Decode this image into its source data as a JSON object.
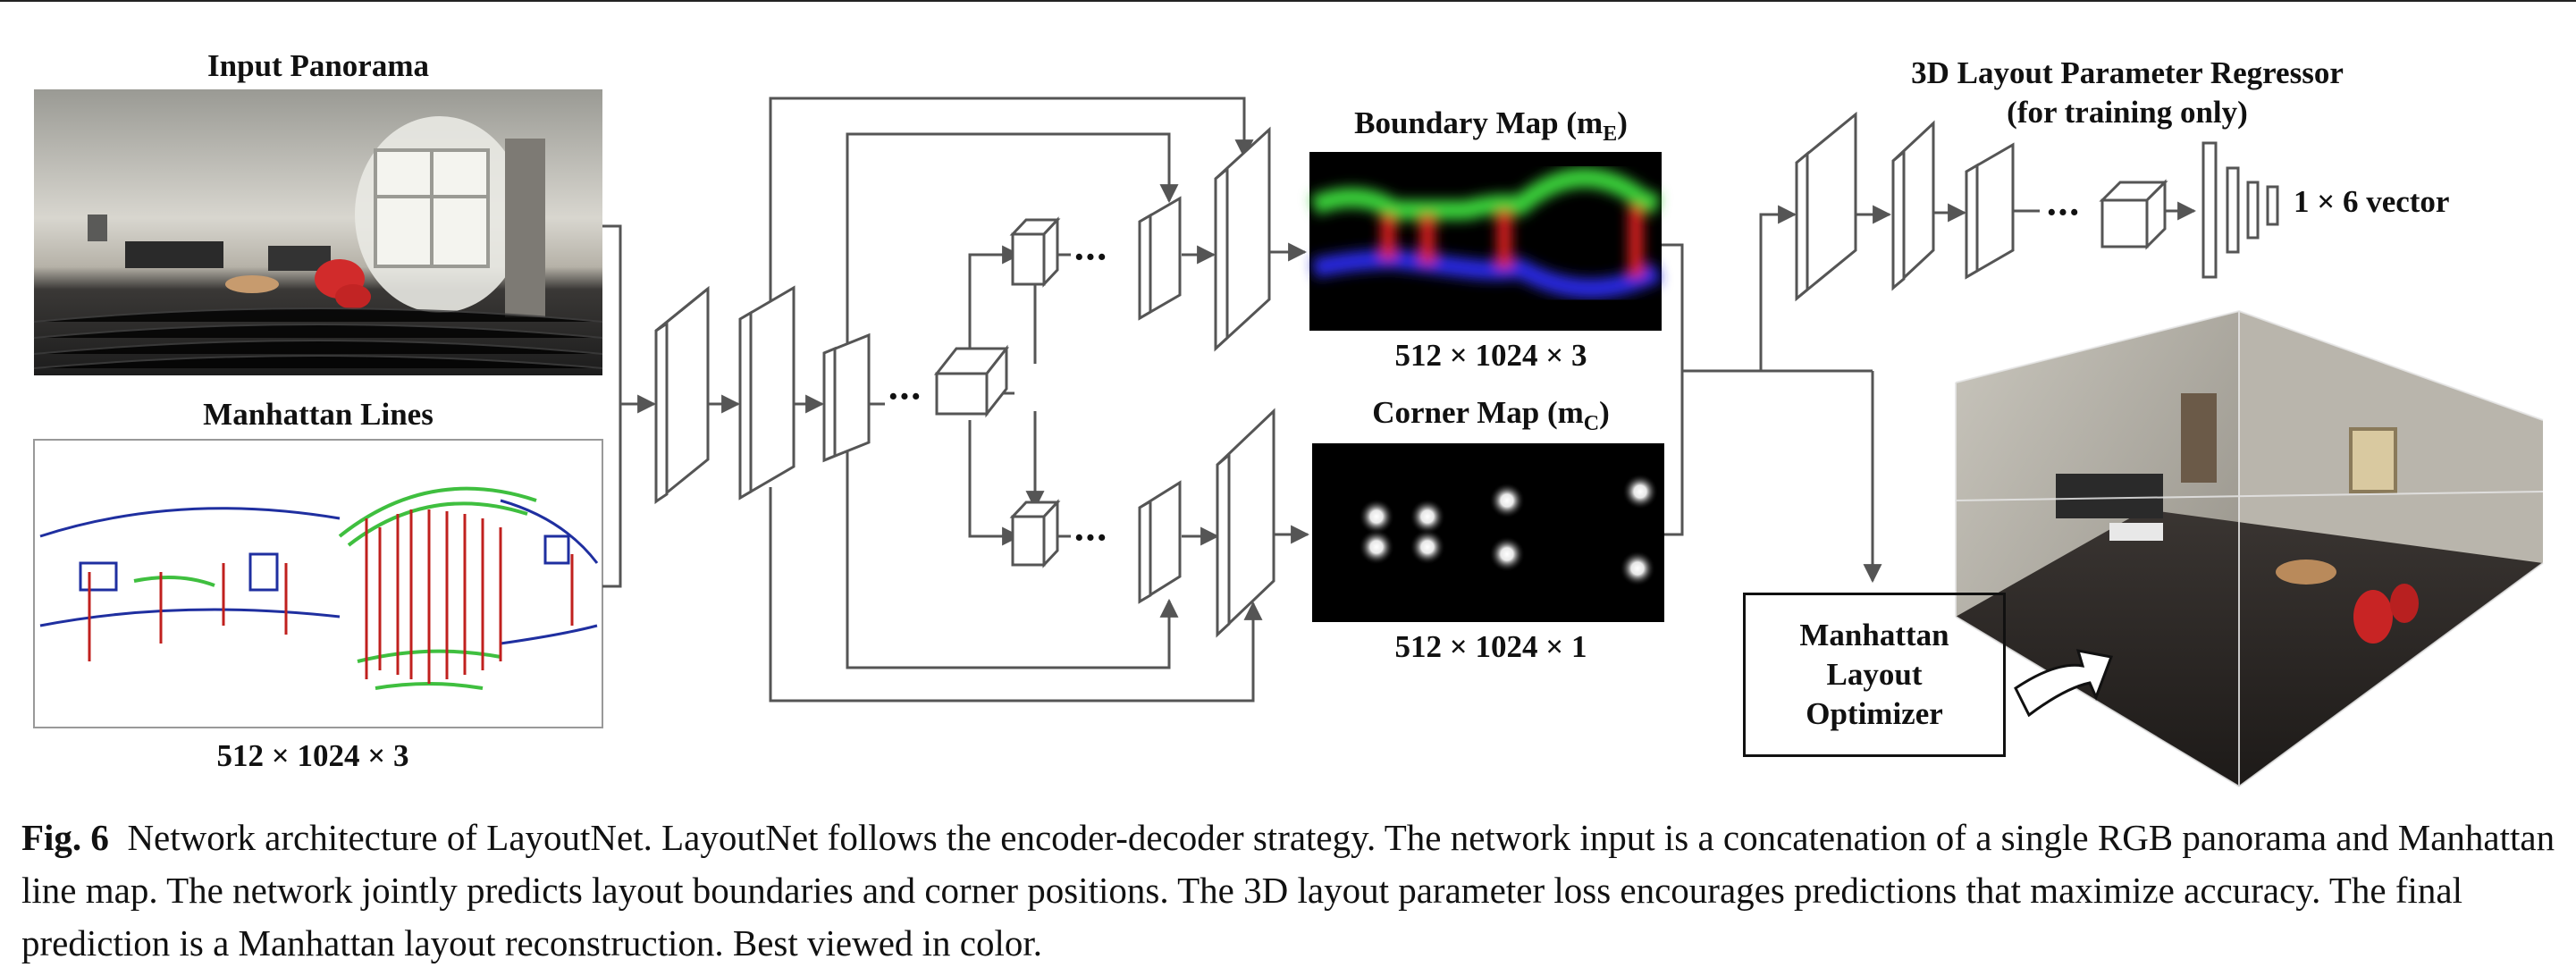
{
  "labels": {
    "input_panorama": "Input Panorama",
    "manhattan_lines": "Manhattan Lines",
    "input_dims": "512 × 1024 × 3",
    "boundary_map_prefix": "Boundary Map (m",
    "boundary_map_sub": "E",
    "boundary_map_suffix": ")",
    "boundary_dims": "512 × 1024 × 3",
    "corner_map_prefix": "Corner Map (m",
    "corner_map_sub": "C",
    "corner_map_suffix": ")",
    "corner_dims": "512 × 1024 × 1",
    "regressor_line1": "3D Layout Parameter Regressor",
    "regressor_line2": "(for training only)",
    "vector_label": "1 × 6 vector",
    "optimizer_line1": "Manhattan",
    "optimizer_line2": "Layout",
    "optimizer_line3": "Optimizer",
    "ellipsis": "···"
  },
  "caption": {
    "fig_label": "Fig. 6",
    "text": "Network architecture of LayoutNet. LayoutNet follows the encoder-decoder strategy. The network input is a concatenation of a single RGB panorama and Manhattan line map. The network jointly predicts layout boundaries and corner positions. The 3D layout parameter loss encourages predictions that maximize accuracy. The final prediction is a Manhattan layout reconstruction. Best viewed in color."
  },
  "colors": {
    "line": "#555555",
    "boundary_green": "#3ad13a",
    "boundary_red": "#e02020",
    "boundary_blue": "#2a2ae0",
    "manhattan_red": "#c0201e",
    "manhattan_green": "#3fbf3f",
    "manhattan_blue": "#1f2fa0"
  }
}
